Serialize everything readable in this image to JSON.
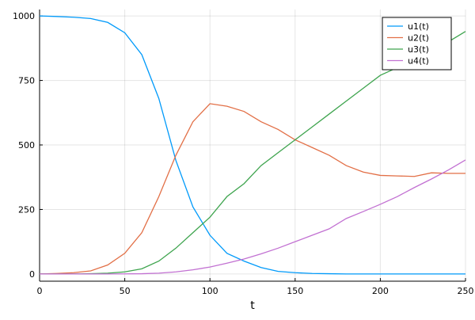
{
  "chart_data": {
    "type": "line",
    "x_label": "t",
    "x": [
      0,
      10,
      20,
      30,
      40,
      50,
      60,
      70,
      80,
      90,
      100,
      110,
      120,
      130,
      140,
      150,
      160,
      170,
      180,
      190,
      200,
      210,
      220,
      230,
      240,
      250
    ],
    "series": [
      {
        "name": "u1(t)",
        "color": "#009afa",
        "values": [
          1000,
          998,
          995,
          990,
          975,
          935,
          850,
          680,
          440,
          260,
          150,
          80,
          50,
          25,
          10,
          5,
          2,
          1,
          0,
          0,
          0,
          0,
          0,
          0,
          0,
          0
        ]
      },
      {
        "name": "u2(t)",
        "color": "#e26f46",
        "values": [
          0,
          2,
          5,
          12,
          35,
          80,
          160,
          300,
          460,
          590,
          660,
          650,
          630,
          590,
          560,
          520,
          490,
          460,
          420,
          395,
          382,
          380,
          378,
          392,
          390,
          390
        ]
      },
      {
        "name": "u3(t)",
        "color": "#3ea44e",
        "values": [
          0,
          0,
          0,
          1,
          3,
          8,
          20,
          50,
          100,
          160,
          220,
          300,
          350,
          420,
          470,
          520,
          570,
          620,
          670,
          720,
          770,
          800,
          830,
          860,
          900,
          940
        ]
      },
      {
        "name": "u4(t)",
        "color": "#c271d2",
        "values": [
          0,
          0,
          0,
          0,
          0,
          0.5,
          1,
          3,
          8,
          16,
          27,
          42,
          58,
          78,
          100,
          125,
          150,
          175,
          215,
          242,
          270,
          300,
          335,
          368,
          403,
          442
        ]
      }
    ],
    "xlim": [
      0,
      250
    ],
    "xticks": [
      0,
      50,
      100,
      150,
      200,
      250
    ],
    "ylim": [
      -28,
      1025
    ],
    "yticks": [
      0,
      250,
      500,
      750,
      1000
    ],
    "grid": true,
    "legend": "top-right"
  }
}
